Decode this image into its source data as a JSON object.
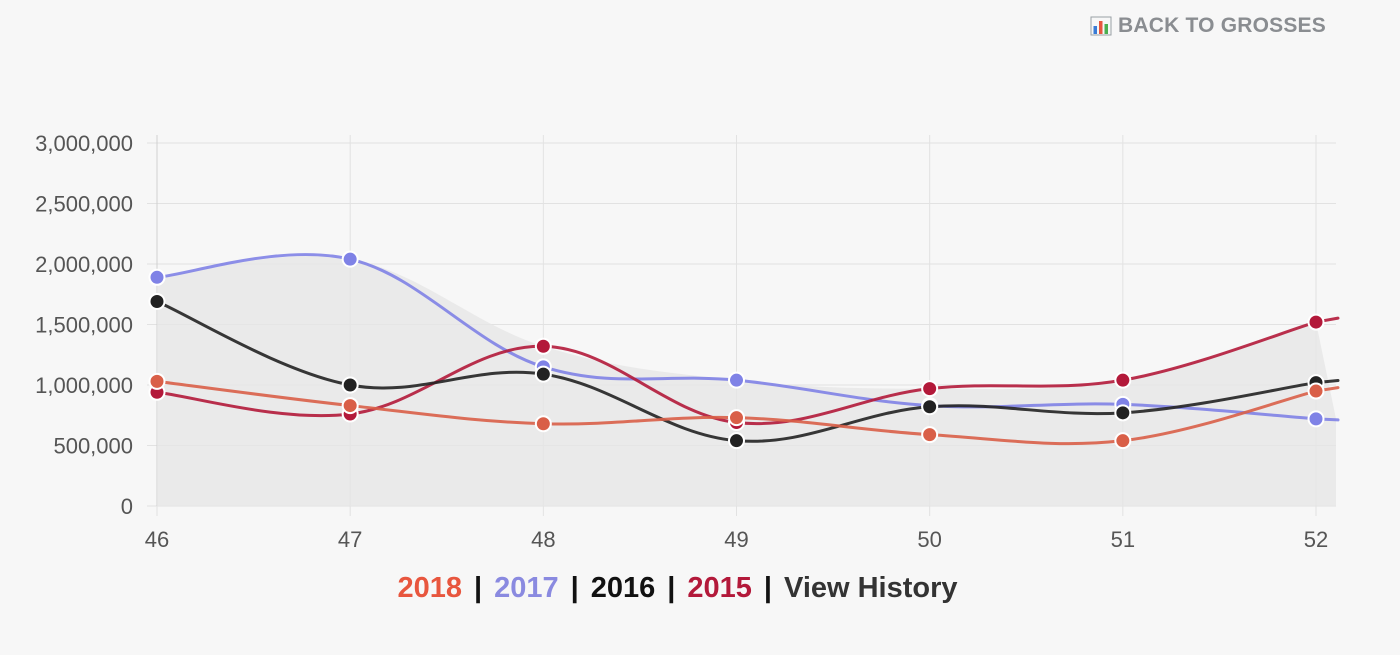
{
  "header": {
    "back_label": "BACK TO GROSSES"
  },
  "chart_data": {
    "type": "line",
    "title": "",
    "xlabel": "",
    "ylabel": "",
    "categories": [
      "46",
      "47",
      "48",
      "49",
      "50",
      "51",
      "52"
    ],
    "ylim": [
      0,
      3000000
    ],
    "y_ticks": [
      0,
      500000,
      1000000,
      1500000,
      2000000,
      2500000,
      3000000
    ],
    "y_tick_labels": [
      "0",
      "500,000",
      "1,000,000",
      "1,500,000",
      "2,000,000",
      "2,500,000",
      "3,000,000"
    ],
    "series": [
      {
        "name": "2017",
        "color": "#7f82e6",
        "values": [
          1890000,
          2040000,
          1150000,
          1040000,
          830000,
          840000,
          720000
        ]
      },
      {
        "name": "2015",
        "color": "#b3193a",
        "values": [
          940000,
          760000,
          1320000,
          690000,
          970000,
          1040000,
          1520000
        ]
      },
      {
        "name": "2016",
        "color": "#222222",
        "values": [
          1690000,
          1000000,
          1090000,
          540000,
          820000,
          770000,
          1020000
        ]
      },
      {
        "name": "2018",
        "color": "#d95f48",
        "values": [
          1030000,
          830000,
          680000,
          730000,
          590000,
          540000,
          950000
        ]
      }
    ],
    "area_fill": "#e6e6e6",
    "grid": true
  },
  "legend": {
    "items": [
      {
        "label": "2018",
        "color": "#e8563e"
      },
      {
        "label": "2017",
        "color": "#8a8ae0"
      },
      {
        "label": "2016",
        "color": "#111111"
      },
      {
        "label": "2015",
        "color": "#b3193a"
      }
    ],
    "separator": "|",
    "history_label": "View History"
  }
}
